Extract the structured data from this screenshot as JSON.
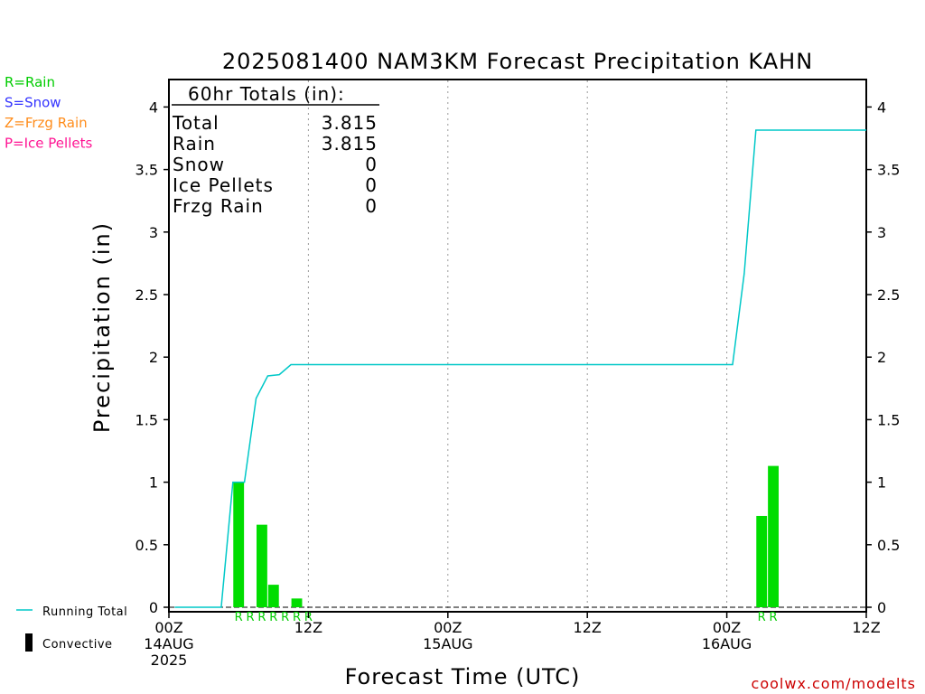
{
  "chart_data": {
    "type": "bar",
    "title": "2025081400 NAM3KM Forecast Precipitation KAHN",
    "xlabel": "Forecast Time (UTC)",
    "ylabel": "Precipitation (in)",
    "ylim": [
      0,
      4.2
    ],
    "yticks": [
      0,
      0.5,
      1,
      1.5,
      2,
      2.5,
      3,
      3.5,
      4
    ],
    "ytick_labels": [
      "0",
      "0.5",
      "1",
      "1.5",
      "2",
      "2.5",
      "3",
      "3.5",
      "4"
    ],
    "xlim_hours": [
      0,
      60
    ],
    "xticks": [
      {
        "hour": 0,
        "lines": [
          "00Z",
          "14AUG",
          "2025"
        ]
      },
      {
        "hour": 12,
        "lines": [
          "12Z"
        ]
      },
      {
        "hour": 24,
        "lines": [
          "00Z",
          "15AUG"
        ]
      },
      {
        "hour": 36,
        "lines": [
          "12Z"
        ]
      },
      {
        "hour": 48,
        "lines": [
          "00Z",
          "16AUG"
        ]
      },
      {
        "hour": 60,
        "lines": [
          "12Z"
        ]
      }
    ],
    "vgrid_hours": [
      12,
      24,
      36,
      48
    ],
    "hourly_precip": [
      {
        "hour": 6,
        "value": 1.0,
        "type": "R"
      },
      {
        "hour": 7,
        "value": 0.0,
        "type": "R"
      },
      {
        "hour": 8,
        "value": 0.66,
        "type": "R"
      },
      {
        "hour": 9,
        "value": 0.18,
        "type": "R"
      },
      {
        "hour": 10,
        "value": 0.0,
        "type": "R"
      },
      {
        "hour": 11,
        "value": 0.07,
        "type": "R"
      },
      {
        "hour": 12,
        "value": 0.0,
        "type": "R"
      },
      {
        "hour": 51,
        "value": 0.73,
        "type": "R"
      },
      {
        "hour": 52,
        "value": 1.13,
        "type": "R"
      }
    ],
    "running_total": {
      "name": "Running Total",
      "points": [
        [
          0.5,
          0
        ],
        [
          4.5,
          0
        ],
        [
          5.5,
          1.0
        ],
        [
          6.5,
          1.0
        ],
        [
          7.5,
          1.67
        ],
        [
          8.5,
          1.85
        ],
        [
          9.5,
          1.86
        ],
        [
          10.5,
          1.94
        ],
        [
          47.5,
          1.94
        ],
        [
          48.5,
          1.94
        ],
        [
          49.5,
          2.67
        ],
        [
          50.5,
          3.815
        ],
        [
          60,
          3.815
        ]
      ]
    },
    "totals_box": {
      "header": "60hr Totals (in):",
      "rows": [
        {
          "label": "Total",
          "value": "3.815"
        },
        {
          "label": "Rain",
          "value": "3.815"
        },
        {
          "label": "Snow",
          "value": "0"
        },
        {
          "label": "Ice Pellets",
          "value": "0"
        },
        {
          "label": "Frzg Rain",
          "value": "0"
        }
      ]
    },
    "type_legend": [
      {
        "text": "R=Rain",
        "color": "#00cc00"
      },
      {
        "text": "S=Snow",
        "color": "#3333ff"
      },
      {
        "text": "Z=Frzg Rain",
        "color": "#ff8c1a"
      },
      {
        "text": "P=Ice Pellets",
        "color": "#ff1493"
      }
    ],
    "series_legend": [
      {
        "text": "Running Total",
        "color": "#00c8c8",
        "kind": "line"
      },
      {
        "text": "Convective",
        "color": "#000000",
        "kind": "bar"
      }
    ],
    "watermark": "coolwx.com/modelts",
    "colors": {
      "bar": "#00dd00",
      "running_total": "#00c8c8",
      "marker": "#00cc00"
    }
  }
}
